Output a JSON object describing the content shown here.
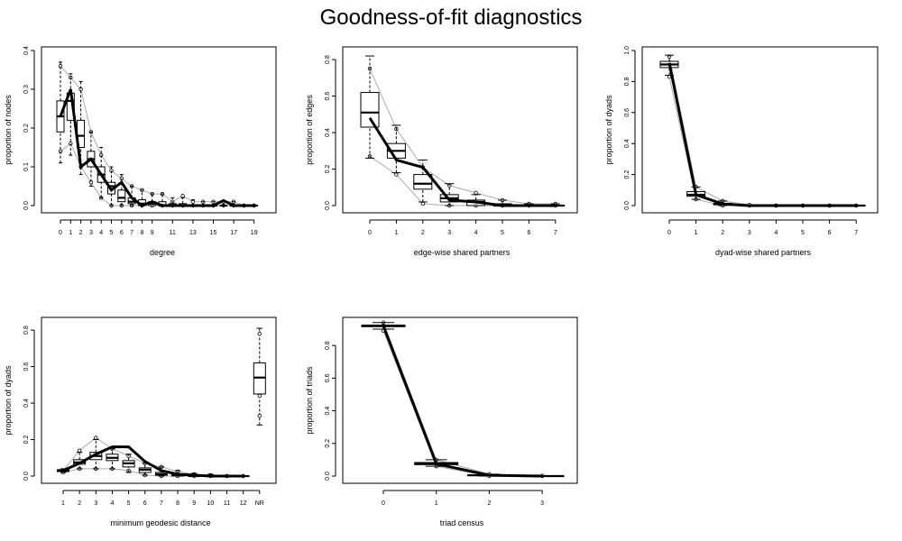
{
  "title": "Goodness-of-fit diagnostics",
  "chart_data": [
    {
      "type": "box",
      "xlabel": "degree",
      "ylabel": "proportion of nodes",
      "ylim": [
        0,
        0.4
      ],
      "yticks": [
        "0.0",
        "0.1",
        "0.2",
        "0.3",
        "0.4"
      ],
      "xticks": [
        "0",
        "1",
        "2",
        "3",
        "4",
        "5",
        "6",
        "7",
        "8",
        "9",
        "11",
        "13",
        "15",
        "17",
        "19"
      ],
      "categories": [
        0,
        1,
        2,
        3,
        4,
        5,
        6,
        7,
        8,
        9,
        10,
        11,
        12,
        13,
        14,
        15,
        16,
        17,
        18,
        19
      ],
      "boxes": [
        {
          "whisker_low": 0.11,
          "q1": 0.19,
          "median": 0.23,
          "q3": 0.27,
          "whisker_high": 0.37
        },
        {
          "whisker_low": 0.13,
          "q1": 0.22,
          "median": 0.27,
          "q3": 0.29,
          "whisker_high": 0.34
        },
        {
          "whisker_low": 0.08,
          "q1": 0.15,
          "median": 0.18,
          "q3": 0.22,
          "whisker_high": 0.32
        },
        {
          "whisker_low": 0.05,
          "q1": 0.1,
          "median": 0.12,
          "q3": 0.14,
          "whisker_high": 0.19
        },
        {
          "whisker_low": 0.02,
          "q1": 0.06,
          "median": 0.08,
          "q3": 0.1,
          "whisker_high": 0.15
        },
        {
          "whisker_low": 0.0,
          "q1": 0.03,
          "median": 0.05,
          "q3": 0.06,
          "whisker_high": 0.1
        },
        {
          "whisker_low": 0.0,
          "q1": 0.01,
          "median": 0.02,
          "q3": 0.04,
          "whisker_high": 0.08
        },
        {
          "whisker_low": 0.0,
          "q1": 0.005,
          "median": 0.01,
          "q3": 0.02,
          "whisker_high": 0.05
        },
        {
          "whisker_low": 0.0,
          "q1": 0.0,
          "median": 0.005,
          "q3": 0.015,
          "whisker_high": 0.04
        },
        {
          "whisker_low": 0.0,
          "q1": 0.0,
          "median": 0.005,
          "q3": 0.01,
          "whisker_high": 0.03
        },
        {
          "whisker_low": 0.0,
          "q1": 0.0,
          "median": 0.0,
          "q3": 0.01,
          "whisker_high": 0.03
        },
        {
          "whisker_low": 0.0,
          "q1": 0.0,
          "median": 0.0,
          "q3": 0.005,
          "whisker_high": 0.02
        },
        {
          "whisker_low": 0.0,
          "q1": 0.0,
          "median": 0.0,
          "q3": 0.005,
          "whisker_high": 0.02
        },
        {
          "whisker_low": 0.0,
          "q1": 0.0,
          "median": 0.0,
          "q3": 0.0,
          "whisker_high": 0.015
        },
        {
          "whisker_low": 0.0,
          "q1": 0.0,
          "median": 0.0,
          "q3": 0.0,
          "whisker_high": 0.01
        },
        {
          "whisker_low": 0.0,
          "q1": 0.0,
          "median": 0.0,
          "q3": 0.0,
          "whisker_high": 0.01
        },
        {
          "whisker_low": 0.0,
          "q1": 0.0,
          "median": 0.0,
          "q3": 0.0,
          "whisker_high": 0.01
        },
        {
          "whisker_low": 0.0,
          "q1": 0.0,
          "median": 0.0,
          "q3": 0.0,
          "whisker_high": 0.01
        },
        {
          "whisker_low": 0.0,
          "q1": 0.0,
          "median": 0.0,
          "q3": 0.0,
          "whisker_high": 0.0
        },
        {
          "whisker_low": 0.0,
          "q1": 0.0,
          "median": 0.0,
          "q3": 0.0,
          "whisker_high": 0.0
        }
      ],
      "observed": [
        0.23,
        0.3,
        0.1,
        0.12,
        0.08,
        0.04,
        0.06,
        0.02,
        0.0,
        0.01,
        0.0,
        0.0,
        0.0,
        0.0,
        0.0,
        0.0,
        0.013,
        0.0,
        0.0,
        0.0
      ],
      "envelope_low": [
        0.14,
        0.16,
        0.1,
        0.06,
        0.02,
        0.0,
        0.0,
        0.0,
        0.0,
        0.0,
        0.0,
        0.0,
        0.0,
        0.0,
        0.0,
        0.0,
        0.0,
        0.0,
        0.0,
        0.0
      ],
      "envelope_high": [
        0.36,
        0.33,
        0.3,
        0.19,
        0.13,
        0.09,
        0.07,
        0.05,
        0.04,
        0.03,
        0.03,
        0.01,
        0.025,
        0.01,
        0.01,
        0.01,
        0.01,
        0.01,
        0.0,
        0.0
      ],
      "grid": false
    },
    {
      "type": "box",
      "xlabel": "edge-wise shared partners",
      "ylabel": "proportion of edges",
      "ylim": [
        0,
        0.85
      ],
      "yticks": [
        "0.0",
        "0.2",
        "0.4",
        "0.6",
        "0.8"
      ],
      "xticks": [
        "0",
        "1",
        "2",
        "3",
        "4",
        "5",
        "6",
        "7"
      ],
      "categories": [
        0,
        1,
        2,
        3,
        4,
        5,
        6,
        7
      ],
      "boxes": [
        {
          "whisker_low": 0.26,
          "q1": 0.43,
          "median": 0.51,
          "q3": 0.62,
          "whisker_high": 0.82
        },
        {
          "whisker_low": 0.18,
          "q1": 0.26,
          "median": 0.3,
          "q3": 0.34,
          "whisker_high": 0.44
        },
        {
          "whisker_low": 0.02,
          "q1": 0.09,
          "median": 0.12,
          "q3": 0.17,
          "whisker_high": 0.25
        },
        {
          "whisker_low": 0.0,
          "q1": 0.02,
          "median": 0.04,
          "q3": 0.06,
          "whisker_high": 0.12
        },
        {
          "whisker_low": 0.0,
          "q1": 0.0,
          "median": 0.02,
          "q3": 0.03,
          "whisker_high": 0.06
        },
        {
          "whisker_low": 0.0,
          "q1": 0.0,
          "median": 0.0,
          "q3": 0.01,
          "whisker_high": 0.03
        },
        {
          "whisker_low": 0.0,
          "q1": 0.0,
          "median": 0.0,
          "q3": 0.0,
          "whisker_high": 0.01
        },
        {
          "whisker_low": 0.0,
          "q1": 0.0,
          "median": 0.0,
          "q3": 0.0,
          "whisker_high": 0.01
        }
      ],
      "observed": [
        0.48,
        0.25,
        0.21,
        0.03,
        0.02,
        0.0,
        0.0,
        0.0
      ],
      "envelope_low": [
        0.27,
        0.17,
        0.01,
        0.0,
        0.0,
        0.0,
        0.0,
        0.0
      ],
      "envelope_high": [
        0.75,
        0.42,
        0.21,
        0.11,
        0.07,
        0.03,
        0.01,
        0.01
      ],
      "grid": false
    },
    {
      "type": "box",
      "xlabel": "dyad-wise shared partners",
      "ylabel": "proportion of dyads",
      "ylim": [
        0,
        1.0
      ],
      "yticks": [
        "0.0",
        "0.2",
        "0.4",
        "0.6",
        "0.8",
        "1.0"
      ],
      "xticks": [
        "0",
        "1",
        "2",
        "3",
        "4",
        "5",
        "6",
        "7"
      ],
      "categories": [
        0,
        1,
        2,
        3,
        4,
        5,
        6,
        7
      ],
      "boxes": [
        {
          "whisker_low": 0.84,
          "q1": 0.89,
          "median": 0.91,
          "q3": 0.93,
          "whisker_high": 0.97
        },
        {
          "whisker_low": 0.04,
          "q1": 0.06,
          "median": 0.07,
          "q3": 0.09,
          "whisker_high": 0.12
        },
        {
          "whisker_low": 0.0,
          "q1": 0.005,
          "median": 0.01,
          "q3": 0.015,
          "whisker_high": 0.03
        },
        {
          "whisker_low": 0.0,
          "q1": 0.0,
          "median": 0.0,
          "q3": 0.0,
          "whisker_high": 0.005
        },
        {
          "whisker_low": 0.0,
          "q1": 0.0,
          "median": 0.0,
          "q3": 0.0,
          "whisker_high": 0.0
        },
        {
          "whisker_low": 0.0,
          "q1": 0.0,
          "median": 0.0,
          "q3": 0.0,
          "whisker_high": 0.0
        },
        {
          "whisker_low": 0.0,
          "q1": 0.0,
          "median": 0.0,
          "q3": 0.0,
          "whisker_high": 0.0
        },
        {
          "whisker_low": 0.0,
          "q1": 0.0,
          "median": 0.0,
          "q3": 0.0,
          "whisker_high": 0.0
        }
      ],
      "observed": [
        0.92,
        0.07,
        0.01,
        0.0,
        0.0,
        0.0,
        0.0,
        0.0
      ],
      "envelope_low": [
        0.83,
        0.04,
        0.0,
        0.0,
        0.0,
        0.0,
        0.0,
        0.0
      ],
      "envelope_high": [
        0.96,
        0.12,
        0.03,
        0.005,
        0.0,
        0.0,
        0.0,
        0.0
      ],
      "grid": false
    },
    {
      "type": "box",
      "xlabel": "minimum geodesic distance",
      "ylabel": "proportion of dyads",
      "ylim": [
        0,
        0.85
      ],
      "yticks": [
        "0.0",
        "0.2",
        "0.4",
        "0.6",
        "0.8"
      ],
      "xticks": [
        "1",
        "2",
        "3",
        "4",
        "5",
        "6",
        "7",
        "8",
        "9",
        "10",
        "11",
        "12",
        "NR"
      ],
      "categories": [
        "1",
        "2",
        "3",
        "4",
        "5",
        "6",
        "7",
        "8",
        "9",
        "10",
        "11",
        "12",
        "NR"
      ],
      "boxes": [
        {
          "whisker_low": 0.02,
          "q1": 0.025,
          "median": 0.03,
          "q3": 0.035,
          "whisker_high": 0.04
        },
        {
          "whisker_low": 0.04,
          "q1": 0.065,
          "median": 0.075,
          "q3": 0.09,
          "whisker_high": 0.13
        },
        {
          "whisker_low": 0.04,
          "q1": 0.09,
          "median": 0.11,
          "q3": 0.13,
          "whisker_high": 0.2
        },
        {
          "whisker_low": 0.04,
          "q1": 0.085,
          "median": 0.1,
          "q3": 0.12,
          "whisker_high": 0.15
        },
        {
          "whisker_low": 0.02,
          "q1": 0.05,
          "median": 0.07,
          "q3": 0.085,
          "whisker_high": 0.12
        },
        {
          "whisker_low": 0.005,
          "q1": 0.02,
          "median": 0.035,
          "q3": 0.045,
          "whisker_high": 0.07
        },
        {
          "whisker_low": 0.0,
          "q1": 0.005,
          "median": 0.01,
          "q3": 0.02,
          "whisker_high": 0.05
        },
        {
          "whisker_low": 0.0,
          "q1": 0.0,
          "median": 0.005,
          "q3": 0.01,
          "whisker_high": 0.03
        },
        {
          "whisker_low": 0.0,
          "q1": 0.0,
          "median": 0.0,
          "q3": 0.005,
          "whisker_high": 0.015
        },
        {
          "whisker_low": 0.0,
          "q1": 0.0,
          "median": 0.0,
          "q3": 0.0,
          "whisker_high": 0.01
        },
        {
          "whisker_low": 0.0,
          "q1": 0.0,
          "median": 0.0,
          "q3": 0.0,
          "whisker_high": 0.005
        },
        {
          "whisker_low": 0.0,
          "q1": 0.0,
          "median": 0.0,
          "q3": 0.0,
          "whisker_high": 0.0
        },
        {
          "whisker_low": 0.28,
          "q1": 0.45,
          "median": 0.54,
          "q3": 0.62,
          "whisker_high": 0.81
        }
      ],
      "observed": [
        0.03,
        0.07,
        0.12,
        0.16,
        0.16,
        0.08,
        0.03,
        0.01,
        0.005,
        0.0,
        0.0,
        0.0
      ],
      "envelope_low": [
        0.02,
        0.04,
        0.04,
        0.04,
        0.03,
        0.005,
        0.0,
        0.0,
        0.0,
        0.0,
        0.0,
        0.0
      ],
      "envelope_high": [
        0.03,
        0.14,
        0.21,
        0.15,
        0.11,
        0.07,
        0.05,
        0.025,
        0.01,
        0.005,
        0.0,
        0.0
      ],
      "nr_points": [
        0.78,
        0.44,
        0.33
      ],
      "grid": false
    },
    {
      "type": "box",
      "xlabel": "triad census",
      "ylabel": "proportion of triads",
      "ylim": [
        0,
        0.95
      ],
      "yticks": [
        "0.0",
        "0.2",
        "0.4",
        "0.6",
        "0.8"
      ],
      "xticks": [
        "0",
        "1",
        "2",
        "3"
      ],
      "categories": [
        0,
        1,
        2,
        3
      ],
      "boxes": [
        {
          "whisker_low": 0.9,
          "q1": 0.915,
          "median": 0.92,
          "q3": 0.925,
          "whisker_high": 0.94
        },
        {
          "whisker_low": 0.06,
          "q1": 0.07,
          "median": 0.077,
          "q3": 0.083,
          "whisker_high": 0.1
        },
        {
          "whisker_low": 0.0,
          "q1": 0.003,
          "median": 0.005,
          "q3": 0.007,
          "whisker_high": 0.012
        },
        {
          "whisker_low": 0.0,
          "q1": 0.0,
          "median": 0.0,
          "q3": 0.0,
          "whisker_high": 0.002
        }
      ],
      "observed": [
        0.92,
        0.075,
        0.005,
        0.0
      ],
      "envelope_low": [
        0.89,
        0.06,
        0.0,
        0.0
      ],
      "envelope_high": [
        0.94,
        0.1,
        0.012,
        0.002
      ],
      "grid": false
    }
  ],
  "colors": {
    "observed_line": "#000000",
    "envelope_line": "#aaaaaa",
    "box_stroke": "#000000",
    "axis": "#000000"
  }
}
